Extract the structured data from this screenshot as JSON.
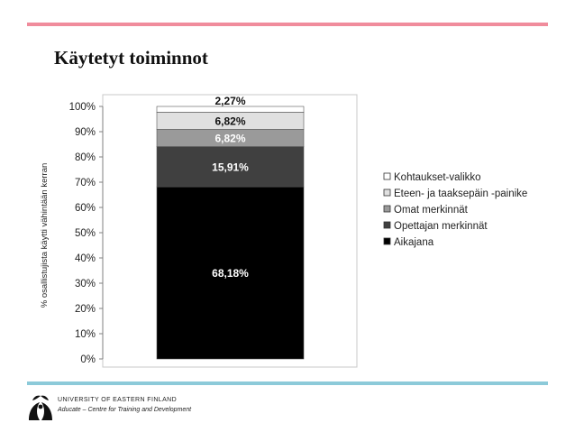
{
  "slide": {
    "title": "Käytetyt toiminnot"
  },
  "footer": {
    "org_name": "UNIVERSITY OF EASTERN FINLAND",
    "unit": "Aducate – Centre for Training and Development"
  },
  "chart_data": {
    "type": "bar",
    "stacked": true,
    "ylabel": "% osallistujista käytti vähintään kerran",
    "ylim": [
      0,
      100
    ],
    "yticks": [
      "0%",
      "10%",
      "20%",
      "30%",
      "40%",
      "50%",
      "60%",
      "70%",
      "80%",
      "90%",
      "100%"
    ],
    "grid": false,
    "legend_position": "right",
    "series": [
      {
        "name": "Aikajana",
        "value": 68.18,
        "label": "68,18%",
        "color": "#000000"
      },
      {
        "name": "Opettajan merkinnät",
        "value": 15.91,
        "label": "15,91%",
        "color": "#404040"
      },
      {
        "name": "Omat merkinnät",
        "value": 6.82,
        "label": "6,82%",
        "color": "#9a9a9a"
      },
      {
        "name": "Eteen- ja taaksepäin -painike",
        "value": 6.82,
        "label": "6,82%",
        "color": "#e0e0e0"
      },
      {
        "name": "Kohtaukset-valikko",
        "value": 2.27,
        "label": "2,27%",
        "color": "#ffffff"
      }
    ],
    "legend_order": [
      "Kohtaukset-valikko",
      "Eteen- ja taaksepäin -painike",
      "Omat merkinnät",
      "Opettajan merkinnät",
      "Aikajana"
    ]
  }
}
